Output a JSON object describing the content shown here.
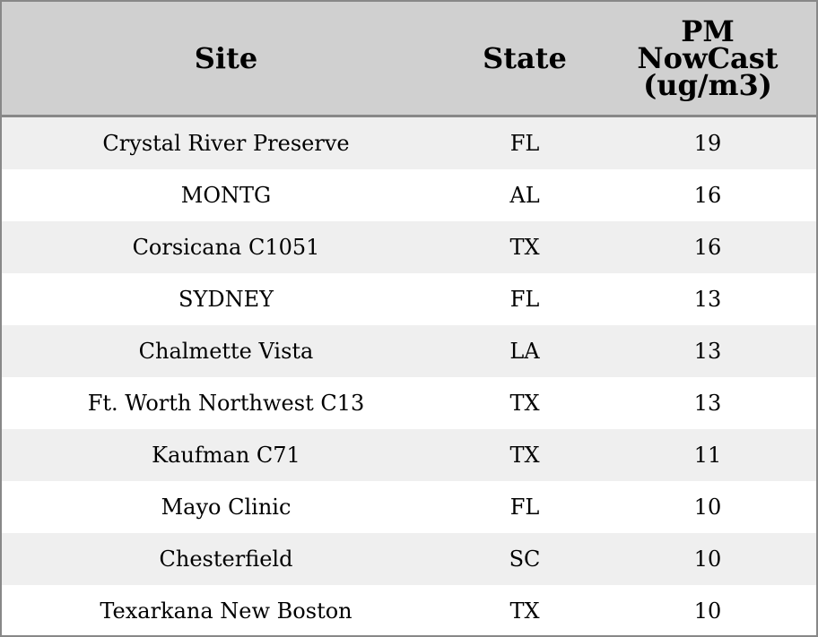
{
  "table": {
    "columns": [
      "Site",
      "State",
      "PM NowCast (ug/m3)"
    ],
    "rows": [
      [
        "Crystal River Preserve",
        "FL",
        19
      ],
      [
        "MONTG",
        "AL",
        16
      ],
      [
        "Corsicana C1051",
        "TX",
        16
      ],
      [
        "SYDNEY",
        "FL",
        13
      ],
      [
        "Chalmette Vista",
        "LA",
        13
      ],
      [
        "Ft. Worth Northwest C13",
        "TX",
        13
      ],
      [
        "Kaufman C71",
        "TX",
        11
      ],
      [
        "Mayo Clinic",
        "FL",
        10
      ],
      [
        "Chesterfield",
        "SC",
        10
      ],
      [
        "Texarkana New Boston",
        "TX",
        10
      ]
    ]
  }
}
